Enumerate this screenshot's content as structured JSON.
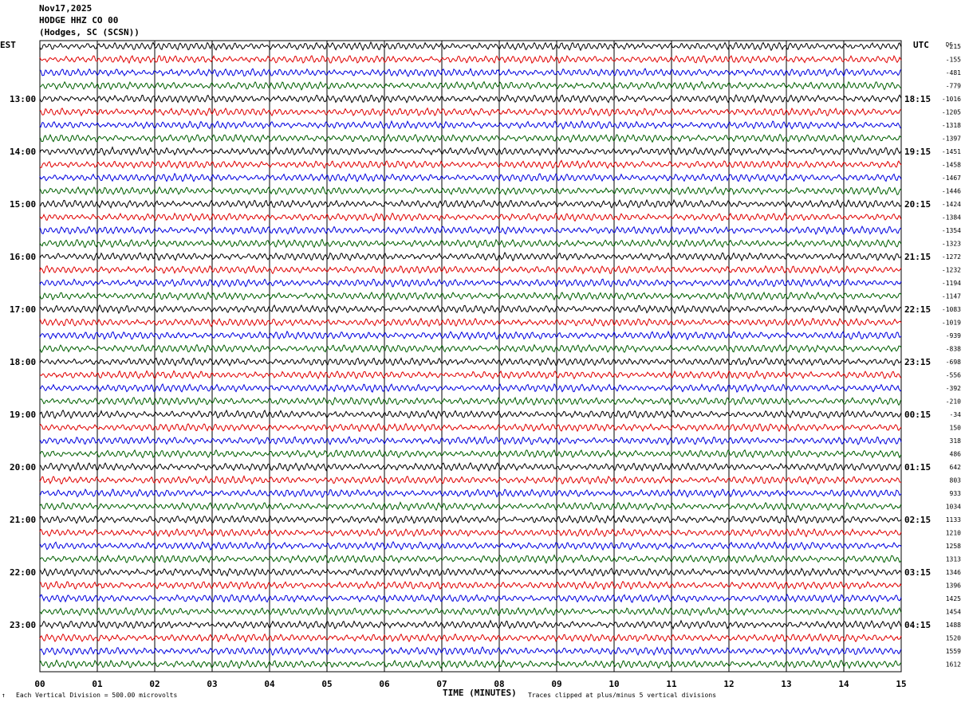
{
  "header": {
    "date": "Nov17,2025",
    "station": "HODGE HHZ CO 00",
    "location": "(Hodges, SC (SCSN))"
  },
  "left_tz": "EST",
  "right_tz": "UTC",
  "dc_label": "DC",
  "colors": {
    "trace_cycle": [
      "#000000",
      "#e00000",
      "#0000e0",
      "#006000"
    ],
    "grid": "#000000"
  },
  "footer": {
    "scale_note": "Each Vertical Division =  500.00 microvolts",
    "clip_note": "Traces clipped at plus/minus 5 vertical divisions",
    "mark": "↑"
  },
  "chart_data": {
    "type": "line",
    "title": "",
    "xlabel": "TIME (MINUTES)",
    "ylabel": "",
    "x_ticks": [
      "00",
      "01",
      "02",
      "03",
      "04",
      "05",
      "06",
      "07",
      "08",
      "09",
      "10",
      "11",
      "12",
      "13",
      "14",
      "15"
    ],
    "xlim": [
      0,
      15
    ],
    "trace_count": 48,
    "traces_per_hour": 4,
    "left_hour_labels": [
      "13:00",
      "14:00",
      "15:00",
      "16:00",
      "17:00",
      "18:00",
      "19:00",
      "20:00",
      "21:00",
      "22:00",
      "23:00"
    ],
    "right_hour_labels": [
      "18:15",
      "19:15",
      "20:15",
      "21:15",
      "22:15",
      "23:15",
      "00:15",
      "01:15",
      "02:15",
      "03:15",
      "04:15"
    ],
    "dc_offsets": [
      "-215",
      "-155",
      "-481",
      "-779",
      "-1016",
      "-1205",
      "-1318",
      "-1397",
      "-1451",
      "-1458",
      "-1467",
      "-1446",
      "-1424",
      "-1384",
      "-1354",
      "-1323",
      "-1272",
      "-1232",
      "-1194",
      "-1147",
      "-1083",
      "-1019",
      "-939",
      "-838",
      "-698",
      "-556",
      "-392",
      "-210",
      "-34",
      "150",
      "318",
      "486",
      "642",
      "803",
      "933",
      "1034",
      "1133",
      "1210",
      "1258",
      "1313",
      "1346",
      "1396",
      "1425",
      "1454",
      "1488",
      "1520",
      "1559",
      "1612"
    ]
  }
}
